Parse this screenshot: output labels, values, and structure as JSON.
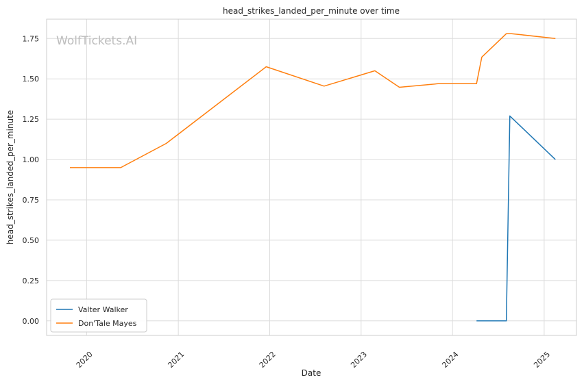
{
  "watermark": "WolfTickets.AI",
  "chart_data": {
    "type": "line",
    "title": "head_strikes_landed_per_minute over time",
    "xlabel": "Date",
    "ylabel": "head_strikes_landed_per_minute",
    "xlim": [
      "2019-07-25",
      "2025-05-10"
    ],
    "ylim": [
      -0.09,
      1.87
    ],
    "x_ticks": [
      "2020-01-01",
      "2021-01-01",
      "2022-01-01",
      "2023-01-01",
      "2024-01-01",
      "2025-01-01"
    ],
    "x_tick_labels": [
      "2020",
      "2021",
      "2022",
      "2023",
      "2024",
      "2025"
    ],
    "y_ticks": [
      0.0,
      0.25,
      0.5,
      0.75,
      1.0,
      1.25,
      1.5,
      1.75
    ],
    "y_tick_labels": [
      "0.00",
      "0.25",
      "0.50",
      "0.75",
      "1.00",
      "1.25",
      "1.50",
      "1.75"
    ],
    "grid": true,
    "legend_position": "lower-left",
    "series": [
      {
        "name": "Valter Walker",
        "color": "#1f77b4",
        "points": [
          {
            "x": "2024-04-06",
            "y": 0.0
          },
          {
            "x": "2024-08-03",
            "y": 0.0
          },
          {
            "x": "2024-08-17",
            "y": 1.27
          },
          {
            "x": "2025-02-15",
            "y": 1.0
          }
        ]
      },
      {
        "name": "Don'Tale Mayes",
        "color": "#ff7f0e",
        "points": [
          {
            "x": "2019-10-26",
            "y": 0.95
          },
          {
            "x": "2020-05-16",
            "y": 0.95
          },
          {
            "x": "2020-11-14",
            "y": 1.1
          },
          {
            "x": "2021-12-18",
            "y": 1.575
          },
          {
            "x": "2022-08-06",
            "y": 1.455
          },
          {
            "x": "2023-02-25",
            "y": 1.55
          },
          {
            "x": "2023-06-03",
            "y": 1.448
          },
          {
            "x": "2023-11-04",
            "y": 1.47
          },
          {
            "x": "2024-04-06",
            "y": 1.47
          },
          {
            "x": "2024-04-27",
            "y": 1.635
          },
          {
            "x": "2024-08-03",
            "y": 1.78
          },
          {
            "x": "2024-08-24",
            "y": 1.78
          },
          {
            "x": "2025-02-15",
            "y": 1.75
          }
        ]
      }
    ]
  }
}
